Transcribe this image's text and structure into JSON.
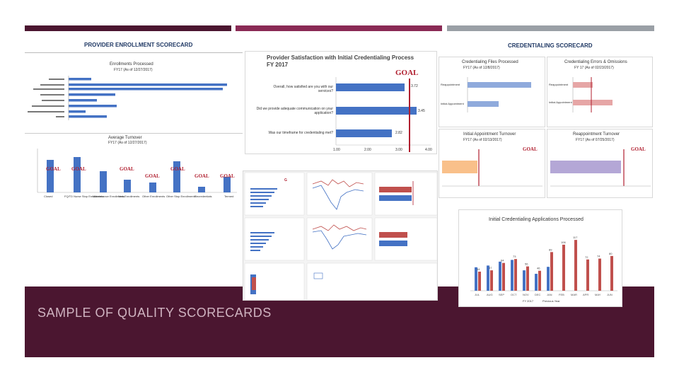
{
  "slide": {
    "footer_title": "SAMPLE OF QUALITY SCORECARDS",
    "colors": {
      "plum": "#4b1630",
      "magenta": "#8a2a55",
      "gray": "#9aa0a6",
      "blue": "#4472c4",
      "red": "#c0504d",
      "lightblue": "#8faadc",
      "pink": "#e6a6a6",
      "orange": "#f9c08a",
      "lavender": "#b4a7d6",
      "goal_red": "#b01e2e"
    }
  },
  "left_scorecard": {
    "header": "PROVIDER ENROLLMENT SCORECARD",
    "chart1": {
      "title": "Enrollments Processed",
      "subtitle": "FY17 (As of 12/27/2017)"
    },
    "chart2": {
      "title": "Average Turnover",
      "subtitle": "FY17 (As of 12/27/2017)",
      "categories": [
        "Closed",
        "FQ/TD Nurse Stop Enrollments",
        "Maintenance Enrollments",
        "New Enrollments",
        "Other Enrollments",
        "Other Stop Enrollments",
        "Recredentials",
        "Termed"
      ],
      "goal_label": "GOAL"
    }
  },
  "center": {
    "satisfaction": {
      "title": "Provider Satisfaction with Initial Credentialing Process FY 2017",
      "goal_label": "GOAL",
      "items": [
        {
          "label": "Overall, how satisfied are you with our services?",
          "value": "3.72"
        },
        {
          "label": "Did we provide adequate communication on your application?",
          "value": "3.45"
        },
        {
          "label": "Was our timeframe for credentialing met?",
          "value": "2.82"
        }
      ],
      "ticks": [
        "1.00",
        "2.00",
        "3.00",
        "4.00"
      ]
    }
  },
  "right_scorecard": {
    "header": "CREDENTIALING SCORECARD",
    "files": {
      "title": "Credentialing Files Processed",
      "subtitle": "FY17 (As of 12/8/2017)",
      "rows": [
        "Reappointment",
        "Initial Appointment"
      ]
    },
    "errors": {
      "title": "Credentialing Errors & Omissions",
      "subtitle": "FY 17 (As of 02/23/2017)",
      "rows": [
        "Reappointment",
        "Initial Appointment"
      ]
    },
    "initial_turn": {
      "title": "Initial Appointment Turnover",
      "subtitle": "FY17 (As of 02/13/2017)",
      "goal_label": "GOAL"
    },
    "reappt_turn": {
      "title": "Reappointment Turnover",
      "subtitle": "FY17 (As of 07/25/2017)",
      "goal_label": "GOAL"
    },
    "applications": {
      "title": "Initial Credentialing Applications Processed",
      "months": [
        "JUL",
        "AUG",
        "SEP",
        "OCT",
        "NOV",
        "DEC",
        "JAN",
        "FEB",
        "MAR",
        "APR",
        "MAY",
        "JUN"
      ],
      "fy2017": [
        44,
        47,
        64,
        73,
        56,
        46,
        89,
        106,
        117,
        72,
        74,
        80
      ],
      "prev": [
        54,
        58,
        67,
        71,
        47,
        39,
        55,
        null,
        null,
        null,
        null,
        null
      ],
      "legend": [
        "FY 2017",
        "Previous Year"
      ]
    }
  }
}
